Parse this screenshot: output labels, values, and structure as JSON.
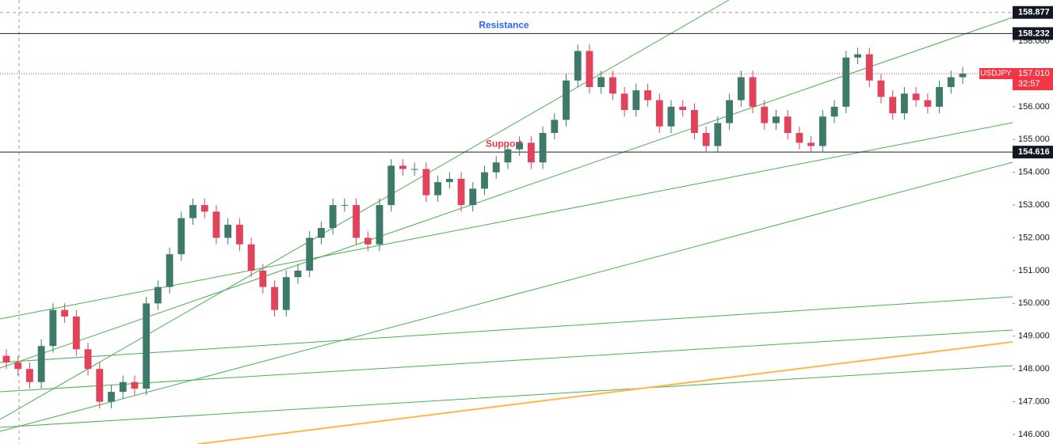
{
  "chart_data": {
    "type": "candlestick",
    "up_color": "#3d7a6a",
    "down_color": "#e0435a",
    "ylim": [
      145.71,
      159.256
    ],
    "yticks": [
      {
        "value": 146,
        "label": "146.000"
      },
      {
        "value": 147,
        "label": "147.000"
      },
      {
        "value": 148,
        "label": "148.000"
      },
      {
        "value": 149,
        "label": "149.000"
      },
      {
        "value": 150,
        "label": "150.000"
      },
      {
        "value": 151,
        "label": "151.000"
      },
      {
        "value": 152,
        "label": "152.000"
      },
      {
        "value": 153,
        "label": "153.000"
      },
      {
        "value": 154,
        "label": "154.000"
      },
      {
        "value": 155,
        "label": "155.000"
      },
      {
        "value": 156,
        "label": "156.000"
      },
      {
        "value": 157,
        "label": "157.000"
      },
      {
        "value": 158,
        "label": "158.000"
      }
    ],
    "levels": [
      {
        "value": 158.877,
        "style": "dashed"
      },
      {
        "value": 158.232,
        "style": "solid"
      },
      {
        "value": 154.616,
        "style": "solid"
      }
    ],
    "annotations": [
      {
        "text": "Resistance",
        "value": 158.232,
        "color": "#2962ff"
      },
      {
        "text": "Support",
        "value": 154.616,
        "color": "#f23645"
      }
    ],
    "current": {
      "symbol": "USDJPY",
      "value": 157.01,
      "label": "157.010",
      "countdown": "32:57",
      "color": "#f23645"
    },
    "open": [
      148.4,
      148.2,
      148.0,
      147.6,
      148.7,
      149.8,
      149.6,
      148.6,
      148.0,
      147.0,
      147.3,
      147.6,
      147.4,
      150.0,
      150.5,
      151.5,
      152.6,
      153.0,
      152.8,
      152.0,
      152.4,
      151.8,
      151.0,
      150.5,
      149.8,
      150.8,
      151.0,
      152.0,
      152.3,
      153.0,
      153.0,
      152.0,
      151.8,
      153.0,
      154.2,
      154.1,
      154.1,
      153.3,
      153.7,
      153.8,
      153.0,
      153.5,
      154.0,
      154.3,
      154.7,
      154.9,
      154.3,
      155.2,
      155.6,
      156.8,
      157.7,
      156.6,
      156.9,
      156.4,
      155.9,
      156.5,
      156.2,
      155.4,
      156.0,
      155.9,
      155.2,
      154.8,
      155.5,
      156.2,
      156.9,
      156.0,
      155.5,
      155.7,
      155.2,
      154.9,
      154.8,
      155.7,
      156.0,
      157.5,
      157.6,
      156.8,
      156.3,
      155.8,
      156.4,
      156.2,
      156.0,
      156.6,
      156.9
    ],
    "high": [
      148.6,
      148.4,
      148.2,
      148.9,
      150.0,
      150.0,
      149.8,
      148.8,
      148.2,
      147.5,
      147.8,
      147.8,
      150.2,
      150.7,
      151.7,
      152.8,
      153.2,
      153.2,
      153.0,
      152.6,
      152.6,
      152.0,
      151.2,
      150.7,
      151.0,
      151.2,
      152.2,
      152.5,
      153.2,
      153.2,
      153.2,
      152.2,
      153.2,
      154.4,
      154.4,
      154.3,
      154.3,
      153.9,
      154.0,
      154.0,
      153.7,
      154.2,
      154.5,
      154.9,
      155.1,
      155.1,
      155.4,
      155.8,
      157.0,
      157.9,
      157.9,
      157.1,
      157.1,
      156.6,
      156.7,
      156.7,
      156.4,
      156.2,
      156.2,
      156.1,
      155.4,
      155.7,
      156.4,
      157.1,
      157.1,
      156.2,
      155.9,
      155.9,
      155.4,
      155.1,
      155.9,
      156.2,
      157.7,
      157.8,
      157.8,
      157.0,
      156.5,
      156.6,
      156.6,
      156.4,
      156.8,
      157.1,
      157.21
    ],
    "low": [
      148.0,
      147.8,
      147.4,
      147.4,
      148.5,
      149.4,
      148.4,
      147.8,
      146.8,
      146.8,
      147.1,
      147.2,
      147.2,
      149.8,
      150.3,
      151.3,
      152.4,
      152.6,
      151.8,
      151.8,
      151.6,
      150.8,
      150.3,
      149.6,
      149.6,
      150.6,
      150.8,
      151.8,
      152.1,
      152.8,
      151.8,
      151.6,
      151.6,
      152.8,
      153.9,
      153.9,
      153.1,
      153.1,
      153.5,
      152.8,
      152.8,
      153.3,
      153.8,
      154.1,
      154.5,
      154.1,
      154.1,
      155.0,
      155.4,
      156.6,
      156.4,
      156.4,
      156.2,
      155.7,
      155.7,
      156.0,
      155.2,
      155.2,
      155.7,
      155.0,
      154.6,
      154.6,
      155.3,
      156.0,
      155.8,
      155.3,
      155.3,
      155.0,
      154.7,
      154.6,
      154.6,
      155.5,
      155.8,
      157.3,
      156.6,
      156.1,
      155.6,
      155.6,
      156.0,
      155.8,
      155.8,
      156.4,
      156.7
    ],
    "close": [
      148.2,
      148.0,
      147.6,
      148.7,
      149.8,
      149.6,
      148.6,
      148.0,
      147.0,
      147.3,
      147.6,
      147.4,
      150.0,
      150.5,
      151.5,
      152.6,
      153.0,
      152.8,
      152.0,
      152.4,
      151.8,
      151.0,
      150.5,
      149.8,
      150.8,
      151.0,
      152.0,
      152.3,
      153.0,
      153.0,
      152.0,
      151.8,
      153.0,
      154.2,
      154.1,
      154.1,
      153.3,
      153.7,
      153.8,
      153.0,
      153.5,
      154.0,
      154.3,
      154.7,
      154.9,
      154.3,
      155.2,
      155.6,
      156.8,
      157.7,
      156.6,
      156.9,
      156.4,
      155.9,
      156.5,
      156.2,
      155.4,
      156.0,
      155.9,
      155.2,
      154.8,
      155.5,
      156.2,
      156.9,
      156.0,
      155.5,
      155.7,
      155.2,
      154.9,
      154.8,
      155.7,
      156.0,
      157.5,
      157.6,
      156.8,
      156.3,
      155.8,
      156.4,
      156.2,
      156.0,
      156.6,
      156.9,
      157.01
    ]
  }
}
